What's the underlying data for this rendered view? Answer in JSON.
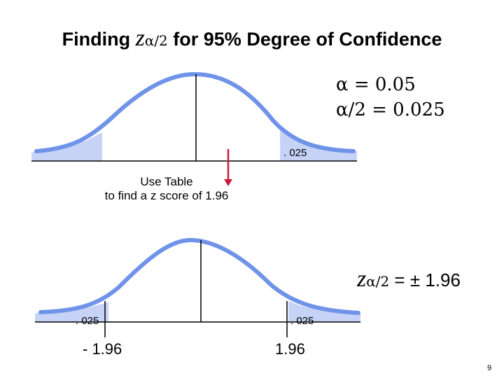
{
  "title": {
    "prefix": "Finding ",
    "z": "z",
    "subscript": "α/2",
    "suffix": " for 95% Degree of Confidence"
  },
  "params": {
    "alpha_line": "α = 0.05",
    "half_alpha_line": "α/2 = 0.025"
  },
  "top_curve": {
    "tail_label": ". 025"
  },
  "table_note": {
    "line1": "Use Table",
    "line2": "to find a z score of 1.96"
  },
  "bottom_curve": {
    "left_tail_label": ". 025",
    "right_tail_label": ". 025",
    "left_z": "- 1.96",
    "right_z": "1.96"
  },
  "z_result": {
    "z": "z",
    "subscript": "α/2",
    "value": " = ± 1.96"
  },
  "page_number": "9",
  "colors": {
    "curve": "#6f93e8",
    "tail_fill": "#c6d3f7",
    "arrow": "#cc1a3a"
  }
}
